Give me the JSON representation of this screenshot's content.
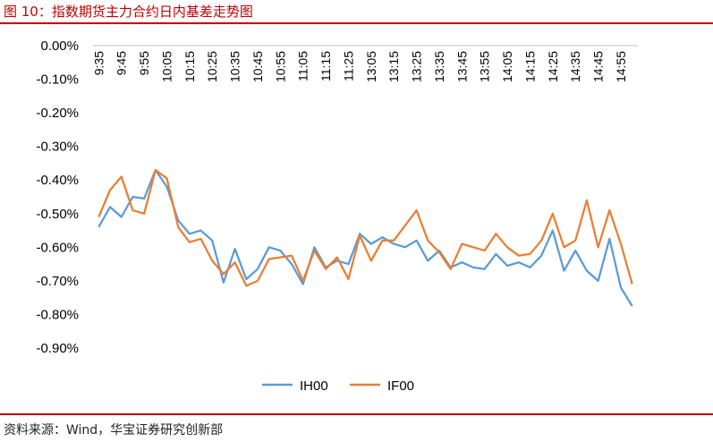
{
  "figure": {
    "title": "图 10：指数期货主力合约日内基差走势图",
    "source": "资料来源：Wind，华宝证券研究创新部"
  },
  "chart_data": {
    "type": "line",
    "ylim": [
      -0.9,
      0.0
    ],
    "y_ticks": [
      "0.00%",
      "-0.10%",
      "-0.20%",
      "-0.30%",
      "-0.40%",
      "-0.50%",
      "-0.60%",
      "-0.70%",
      "-0.80%",
      "-0.90%"
    ],
    "x_tick_labels": [
      "9:35",
      "9:45",
      "9:55",
      "10:05",
      "10:15",
      "10:25",
      "10:35",
      "10:45",
      "10:55",
      "11:05",
      "11:15",
      "11:25",
      "13:05",
      "13:15",
      "13:25",
      "13:35",
      "13:45",
      "13:55",
      "14:05",
      "14:15",
      "14:25",
      "14:35",
      "14:45",
      "14:55"
    ],
    "legend_position": "bottom",
    "colors": {
      "IH00": "#5b9bd5",
      "IF00": "#ed7d31"
    },
    "series": [
      {
        "name": "IH00",
        "values": [
          -0.54,
          -0.48,
          -0.51,
          -0.45,
          -0.455,
          -0.37,
          -0.42,
          -0.52,
          -0.56,
          -0.55,
          -0.58,
          -0.705,
          -0.605,
          -0.695,
          -0.665,
          -0.6,
          -0.61,
          -0.65,
          -0.71,
          -0.6,
          -0.66,
          -0.64,
          -0.65,
          -0.56,
          -0.59,
          -0.57,
          -0.59,
          -0.6,
          -0.58,
          -0.64,
          -0.61,
          -0.66,
          -0.645,
          -0.66,
          -0.665,
          -0.62,
          -0.655,
          -0.645,
          -0.66,
          -0.625,
          -0.55,
          -0.67,
          -0.61,
          -0.67,
          -0.7,
          -0.575,
          -0.72,
          -0.775
        ]
      },
      {
        "name": "IF00",
        "values": [
          -0.51,
          -0.43,
          -0.39,
          -0.49,
          -0.5,
          -0.37,
          -0.395,
          -0.54,
          -0.585,
          -0.575,
          -0.64,
          -0.68,
          -0.645,
          -0.715,
          -0.7,
          -0.635,
          -0.63,
          -0.625,
          -0.7,
          -0.61,
          -0.665,
          -0.63,
          -0.695,
          -0.565,
          -0.64,
          -0.58,
          -0.58,
          -0.535,
          -0.49,
          -0.58,
          -0.615,
          -0.665,
          -0.59,
          -0.6,
          -0.61,
          -0.56,
          -0.6,
          -0.625,
          -0.62,
          -0.58,
          -0.5,
          -0.6,
          -0.58,
          -0.46,
          -0.6,
          -0.49,
          -0.59,
          -0.71
        ]
      }
    ]
  }
}
